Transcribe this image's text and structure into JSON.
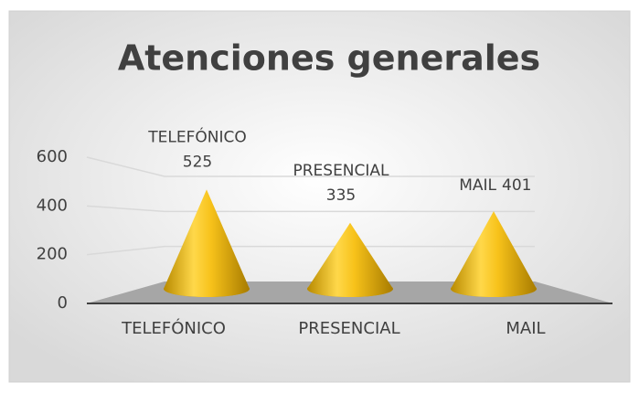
{
  "chart_data": {
    "type": "cone",
    "title": "Atenciones generales",
    "categories": [
      "TELEFÓNICO",
      "PRESENCIAL",
      "MAIL"
    ],
    "values": [
      525,
      335,
      401
    ],
    "color": "#f2c21b",
    "ylim": [
      0,
      600
    ],
    "yticks": [
      0,
      200,
      400,
      600
    ],
    "grid": true
  }
}
